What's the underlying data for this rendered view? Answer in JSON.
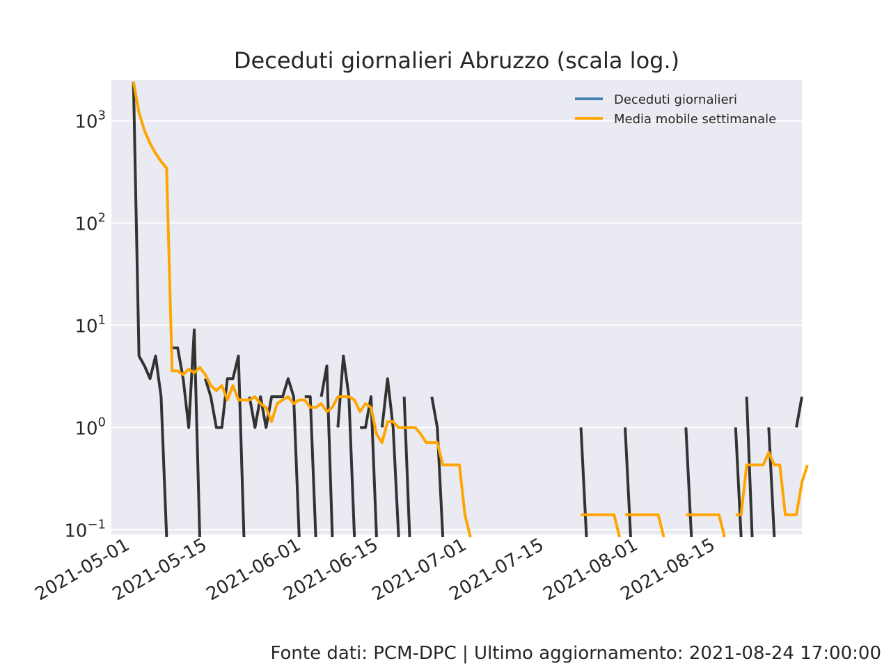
{
  "chart_data": {
    "type": "line",
    "title": "Deceduti giornalieri Abruzzo (scala log.)",
    "xlabel": "",
    "ylabel": "",
    "yscale": "log",
    "ylim": [
      0.09,
      2500
    ],
    "xlim": [
      "2021-04-28",
      "2021-08-31"
    ],
    "grid": true,
    "legend_position": "top-right",
    "x_ticks": [
      "2021-05-01",
      "2021-05-15",
      "2021-06-01",
      "2021-06-15",
      "2021-07-01",
      "2021-07-15",
      "2021-08-01",
      "2021-08-15"
    ],
    "y_ticks": [
      {
        "value": 0.1,
        "base": "10",
        "exp": "−1"
      },
      {
        "value": 1,
        "base": "10",
        "exp": "0"
      },
      {
        "value": 10,
        "base": "10",
        "exp": "1"
      },
      {
        "value": 100,
        "base": "10",
        "exp": "2"
      },
      {
        "value": 1000,
        "base": "10",
        "exp": "3"
      }
    ],
    "x_start": "2021-05-02",
    "series": [
      {
        "name": "Deceduti giornalieri",
        "legend_color": "#4682b4",
        "line_color": "#333333",
        "values": [
          2400,
          5,
          4,
          3,
          5,
          2,
          0,
          6,
          6,
          3,
          1,
          9,
          0,
          3,
          2,
          1,
          1,
          3,
          3,
          5,
          0,
          2,
          1,
          2,
          1,
          2,
          2,
          2,
          3,
          2,
          0,
          2,
          2,
          0,
          2,
          4,
          0,
          1,
          5,
          2,
          0,
          1,
          1,
          2,
          0,
          1,
          3,
          1,
          0,
          2,
          0,
          0,
          0,
          0,
          2,
          1,
          0,
          0,
          0,
          0,
          0,
          0,
          0,
          0,
          0,
          0,
          0,
          0,
          0,
          0,
          0,
          0,
          0,
          0,
          0,
          0,
          0,
          0,
          0,
          0,
          0,
          1,
          0,
          0,
          0,
          0,
          0,
          0,
          0,
          1,
          0,
          0,
          0,
          0,
          0,
          0,
          0,
          0,
          0,
          0,
          1,
          0,
          0,
          0,
          0,
          0,
          0,
          0,
          0,
          1,
          0,
          2,
          0,
          0,
          0,
          1,
          0,
          0,
          0,
          0,
          1,
          2
        ]
      },
      {
        "name": "Media mobile settimanale",
        "legend_color": "#ffa500",
        "line_color": "#ffa500",
        "values": [
          2400,
          1200,
          800,
          600,
          480,
          400,
          343,
          3.57,
          3.57,
          3.29,
          3.71,
          3.43,
          3.86,
          3.29,
          2.57,
          2.29,
          2.57,
          1.86,
          2.57,
          1.86,
          1.86,
          1.86,
          2.0,
          1.71,
          1.57,
          1.14,
          1.71,
          1.86,
          2.0,
          1.71,
          1.86,
          1.86,
          1.57,
          1.57,
          1.71,
          1.43,
          1.57,
          2.0,
          2.0,
          2.0,
          1.86,
          1.43,
          1.71,
          1.57,
          0.86,
          0.71,
          1.14,
          1.14,
          1.0,
          1.0,
          1.0,
          1.0,
          0.86,
          0.71,
          0.71,
          0.71,
          0.43,
          0.43,
          0.43,
          0.43,
          0.14,
          0,
          0,
          0,
          0,
          0,
          0,
          0,
          0,
          0,
          0,
          0,
          0,
          0,
          0,
          0,
          0,
          0,
          0,
          0,
          0,
          0.14,
          0.14,
          0.14,
          0.14,
          0.14,
          0.14,
          0.14,
          0,
          0.14,
          0.14,
          0.14,
          0.14,
          0.14,
          0.14,
          0.14,
          0,
          0,
          0,
          0,
          0.14,
          0.14,
          0.14,
          0.14,
          0.14,
          0.14,
          0.14,
          0,
          0,
          0.14,
          0.14,
          0.43,
          0.43,
          0.43,
          0.43,
          0.57,
          0.43,
          0.43,
          0.14,
          0.14,
          0.14,
          0.29,
          0.43
        ]
      }
    ]
  },
  "footer": "Fonte dati: PCM-DPC | Ultimo aggiornamento: 2021-08-24 17:00:00"
}
